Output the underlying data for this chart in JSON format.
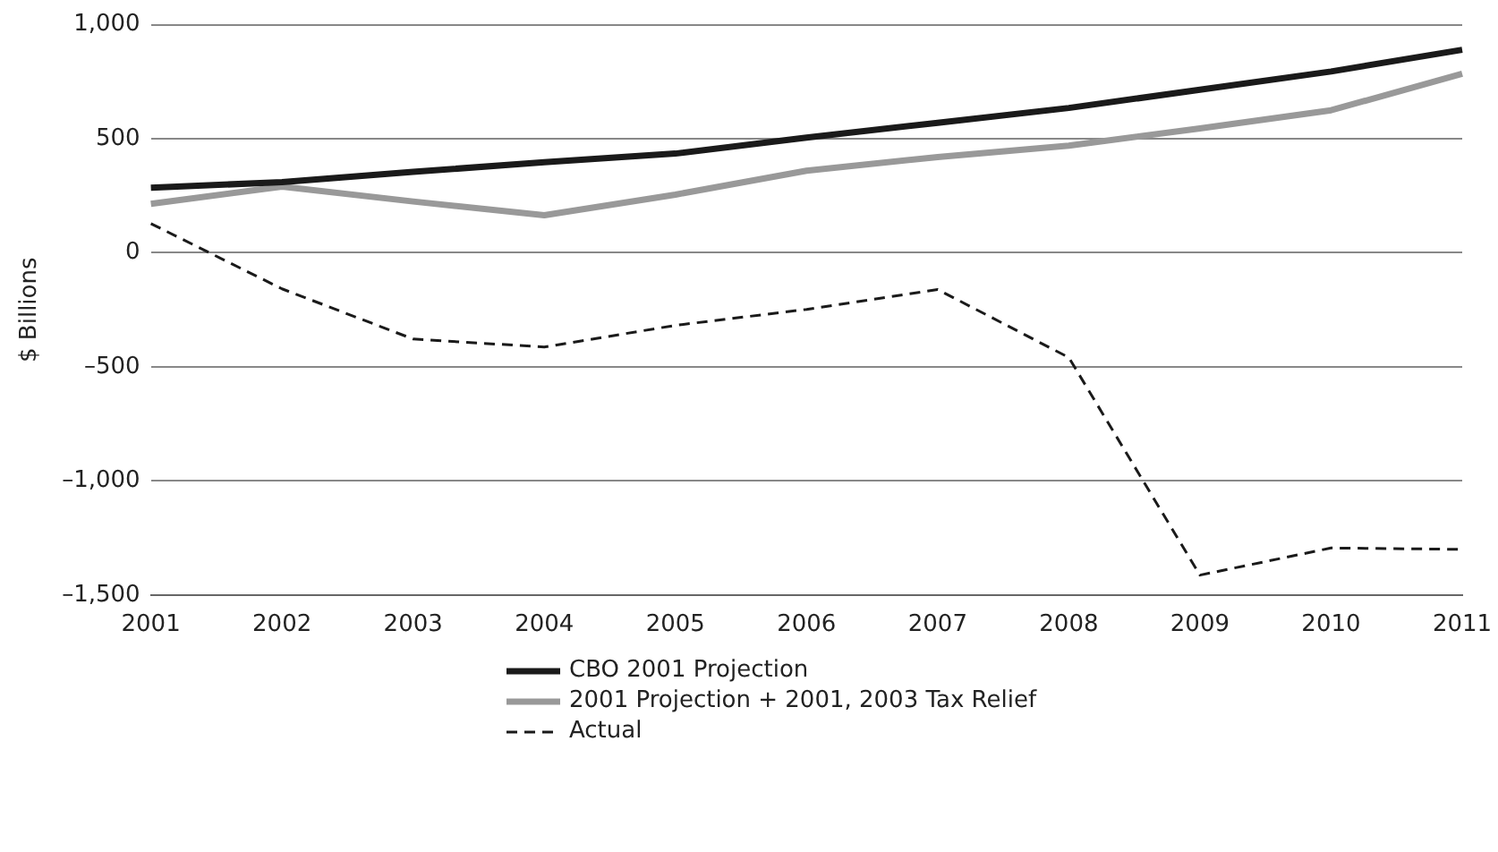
{
  "chart_data": {
    "type": "line",
    "ylabel": "$ Billions",
    "categories": [
      "2001",
      "2002",
      "2003",
      "2004",
      "2005",
      "2006",
      "2007",
      "2008",
      "2009",
      "2010",
      "2011"
    ],
    "series": [
      {
        "name": "CBO 2001 Projection",
        "color": "#1a1a1a",
        "line_style": "solid",
        "values": [
          285,
          310,
          355,
          397,
          435,
          505,
          570,
          635,
          715,
          795,
          890
        ]
      },
      {
        "name": "2001 Projection + 2001, 2003 Tax Relief",
        "color": "#999999",
        "line_style": "solid",
        "values": [
          215,
          290,
          225,
          165,
          255,
          360,
          420,
          470,
          545,
          625,
          785
        ]
      },
      {
        "name": "Actual",
        "color": "#1a1a1a",
        "line_style": "dashed",
        "values": [
          128,
          -158,
          -378,
          -413,
          -318,
          -248,
          -161,
          -459,
          -1413,
          -1294,
          -1300
        ]
      }
    ],
    "ylim": [
      -1500,
      1000
    ],
    "yticks": [
      {
        "value": -1500,
        "label": "–1,500"
      },
      {
        "value": -1000,
        "label": "–1,000"
      },
      {
        "value": -500,
        "label": "–500"
      },
      0,
      500,
      {
        "value": 1000,
        "label": "1,000"
      }
    ],
    "grid": "y",
    "legend": "bottom",
    "marker": "none"
  }
}
